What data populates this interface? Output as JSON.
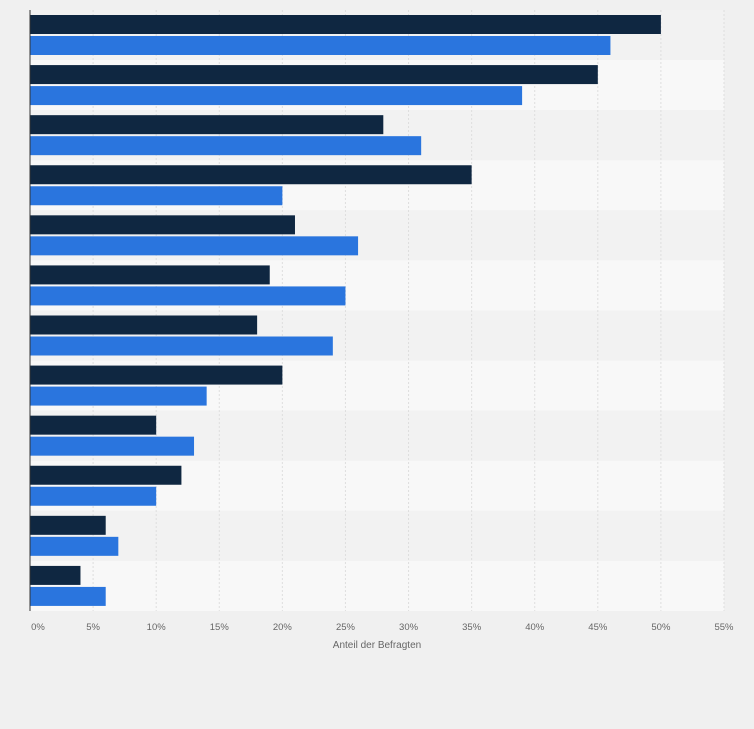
{
  "colors": {
    "page_background": "#f0f0f0",
    "band_light": "#f8f8f8",
    "band_dark": "#f2f2f2",
    "gridline": "#dedede",
    "axis_line": "#333333",
    "tick_text": "#666666"
  },
  "chart_data": {
    "type": "bar",
    "orientation": "horizontal",
    "title": "",
    "xlabel": "Anteil der Befragten",
    "ylabel": "",
    "xlim": [
      0,
      55
    ],
    "x_ticks": [
      "0%",
      "5%",
      "10%",
      "15%",
      "20%",
      "25%",
      "30%",
      "35%",
      "40%",
      "45%",
      "50%",
      "55%"
    ],
    "x_tick_values": [
      0,
      5,
      10,
      15,
      20,
      25,
      30,
      35,
      40,
      45,
      50,
      55
    ],
    "grid": true,
    "legend": "none",
    "categories": [
      "",
      "",
      "",
      "",
      "",
      "",
      "",
      "",
      "",
      "",
      "",
      ""
    ],
    "series": [
      {
        "color": "#0f2741",
        "values": [
          50,
          45,
          28,
          35,
          21,
          19,
          18,
          20,
          10,
          12,
          6,
          4
        ]
      },
      {
        "color": "#2a75de",
        "values": [
          46,
          39,
          31,
          20,
          26,
          25,
          24,
          14,
          13,
          10,
          7,
          6
        ]
      }
    ]
  }
}
